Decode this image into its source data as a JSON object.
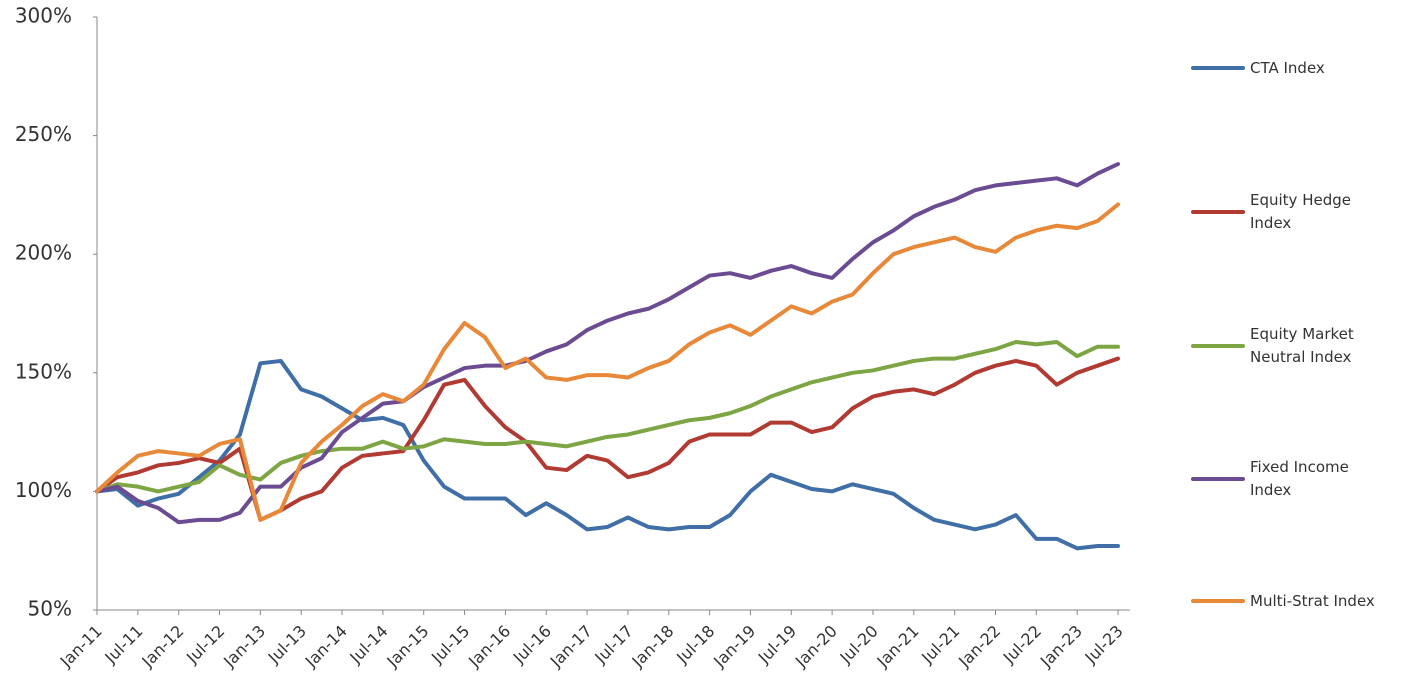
{
  "chart_data": {
    "type": "line",
    "categories": [
      "Jan-11",
      null,
      "Jul-11",
      null,
      "Jan-12",
      null,
      "Jul-12",
      null,
      "Jan-13",
      null,
      "Jul-13",
      null,
      "Jan-14",
      null,
      "Jul-14",
      null,
      "Jan-15",
      null,
      "Jul-15",
      null,
      "Jan-16",
      null,
      "Jul-16",
      null,
      "Jan-17",
      null,
      "Jul-17",
      null,
      "Jan-18",
      null,
      "Jul-18",
      null,
      "Jan-19",
      null,
      "Jul-19",
      null,
      "Jan-20",
      null,
      "Jul-20",
      null,
      "Jan-21",
      null,
      "Jul-21",
      null,
      "Jan-22",
      null,
      "Jul-22",
      null,
      "Jan-23",
      null,
      "Jul-23"
    ],
    "ylim": [
      50,
      300
    ],
    "yticks": [
      {
        "value": 50,
        "label": "50%"
      },
      {
        "value": 100,
        "label": "100%"
      },
      {
        "value": 150,
        "label": "150%"
      },
      {
        "value": 200,
        "label": "200%"
      },
      {
        "value": 250,
        "label": "250%"
      },
      {
        "value": 300,
        "label": "300%"
      }
    ],
    "grid": false,
    "legend": "right",
    "series": [
      {
        "name": "CTA Index",
        "color": "#3f6fa6",
        "values": [
          100,
          101,
          94,
          97,
          99,
          106,
          113,
          124,
          154,
          155,
          143,
          140,
          135,
          130,
          131,
          128,
          113,
          102,
          97,
          97,
          97,
          90,
          95,
          90,
          84,
          85,
          89,
          85,
          84,
          85,
          85,
          90,
          100,
          107,
          104,
          101,
          100,
          103,
          101,
          99,
          93,
          88,
          86,
          84,
          86,
          90,
          80,
          80,
          76,
          77,
          77
        ]
      },
      {
        "name": "Equity Hedge Index",
        "color": "#b13a32",
        "values": [
          100,
          106,
          108,
          111,
          112,
          114,
          112,
          118,
          88,
          92,
          97,
          100,
          110,
          115,
          116,
          117,
          130,
          145,
          147,
          136,
          127,
          121,
          110,
          109,
          115,
          113,
          106,
          108,
          112,
          121,
          124,
          124,
          124,
          129,
          129,
          125,
          127,
          135,
          140,
          142,
          143,
          141,
          145,
          150,
          153,
          155,
          153,
          145,
          150,
          153,
          156
        ]
      },
      {
        "name": "Equity Market Neutral Index",
        "color": "#7ea544",
        "values": [
          100,
          103,
          102,
          100,
          102,
          104,
          111,
          107,
          105,
          112,
          115,
          117,
          118,
          118,
          121,
          118,
          119,
          122,
          121,
          120,
          120,
          121,
          120,
          119,
          121,
          123,
          124,
          126,
          128,
          130,
          131,
          133,
          136,
          140,
          143,
          146,
          148,
          150,
          151,
          153,
          155,
          156,
          156,
          158,
          160,
          163,
          162,
          163,
          157,
          161,
          161
        ]
      },
      {
        "name": "Fixed Income Index",
        "color": "#6b4c92",
        "values": [
          100,
          102,
          96,
          93,
          87,
          88,
          88,
          91,
          102,
          102,
          110,
          114,
          125,
          131,
          137,
          138,
          144,
          148,
          152,
          153,
          153,
          155,
          159,
          162,
          168,
          172,
          175,
          177,
          181,
          186,
          191,
          192,
          190,
          193,
          195,
          192,
          190,
          198,
          205,
          210,
          216,
          220,
          223,
          227,
          229,
          230,
          231,
          232,
          229,
          234,
          238
        ]
      },
      {
        "name": "Multi-Strat Index",
        "color": "#e8893a",
        "values": [
          100,
          108,
          115,
          117,
          116,
          115,
          120,
          122,
          88,
          92,
          112,
          121,
          128,
          136,
          141,
          138,
          145,
          160,
          171,
          165,
          152,
          156,
          148,
          147,
          149,
          149,
          148,
          152,
          155,
          162,
          167,
          170,
          166,
          172,
          178,
          175,
          180,
          183,
          192,
          200,
          203,
          205,
          207,
          203,
          201,
          207,
          210,
          212,
          211,
          214,
          221
        ]
      }
    ]
  }
}
